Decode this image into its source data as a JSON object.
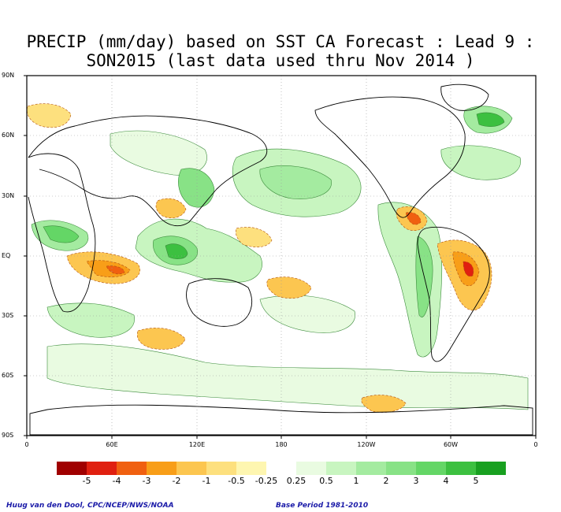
{
  "title": {
    "line1": "PRECIP (mm/day) based on SST CA Forecast : Lead 9 :",
    "line2": "SON2015 (last data used thru Nov 2014 )"
  },
  "axes": {
    "lat_labels": [
      "90N",
      "60N",
      "30N",
      "EQ",
      "30S",
      "60S",
      "90S"
    ],
    "lon_labels": [
      "0",
      "60E",
      "120E",
      "180",
      "120W",
      "60W",
      "0"
    ]
  },
  "colorbar": {
    "colors": [
      "#a00000",
      "#e02010",
      "#f06010",
      "#f89e18",
      "#fcc650",
      "#fde07e",
      "#fef6b0",
      "#ffffff",
      "#e9fbe1",
      "#c8f5c0",
      "#a4eba0",
      "#88e286",
      "#64d666",
      "#3cc040",
      "#18a020"
    ],
    "tick_labels": [
      "-5",
      "-4",
      "-3",
      "-2",
      "-1",
      "-0.5",
      "-0.25",
      "0.25",
      "0.5",
      "1",
      "2",
      "3",
      "4",
      "5"
    ]
  },
  "footer": {
    "left": "Huug van den Dool, CPC/NCEP/NWS/NOAA",
    "right": "Base Period 1981-2010"
  }
}
